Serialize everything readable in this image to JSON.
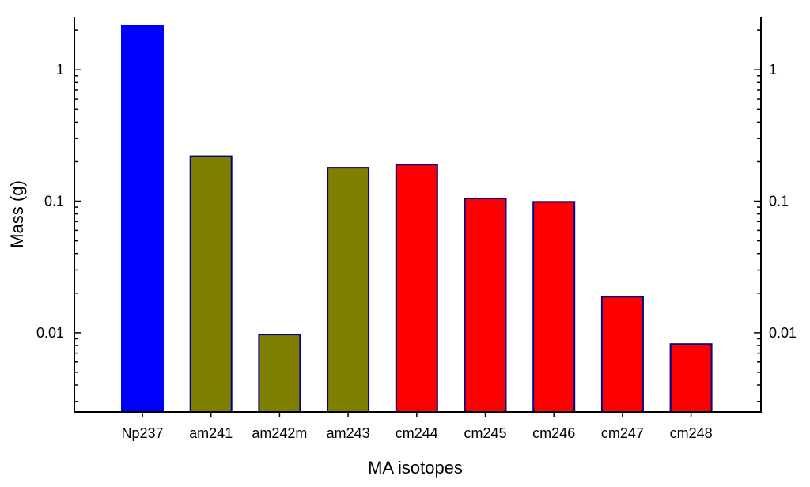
{
  "chart_data": {
    "type": "bar",
    "xlabel": "MA isotopes",
    "ylabel": "Mass (g)",
    "yscale": "log",
    "ylim": [
      0.0025,
      2.5
    ],
    "grid": false,
    "categories": [
      "Np237",
      "am241",
      "am242m",
      "am243",
      "cm244",
      "cm245",
      "cm246",
      "cm247",
      "cm248"
    ],
    "values": [
      2.15,
      0.22,
      0.0097,
      0.18,
      0.19,
      0.105,
      0.099,
      0.0188,
      0.0082
    ],
    "bar_colors": [
      "#0000ff",
      "#808000",
      "#808000",
      "#808000",
      "#ff0000",
      "#ff0000",
      "#ff0000",
      "#ff0000",
      "#ff0000"
    ],
    "bar_edge_color": "#00008b",
    "yticks": [
      {
        "value": 0.01,
        "label": "0.01"
      },
      {
        "value": 0.1,
        "label": "0.1"
      },
      {
        "value": 1,
        "label": "1"
      }
    ],
    "right_axis_mirrored": true
  }
}
